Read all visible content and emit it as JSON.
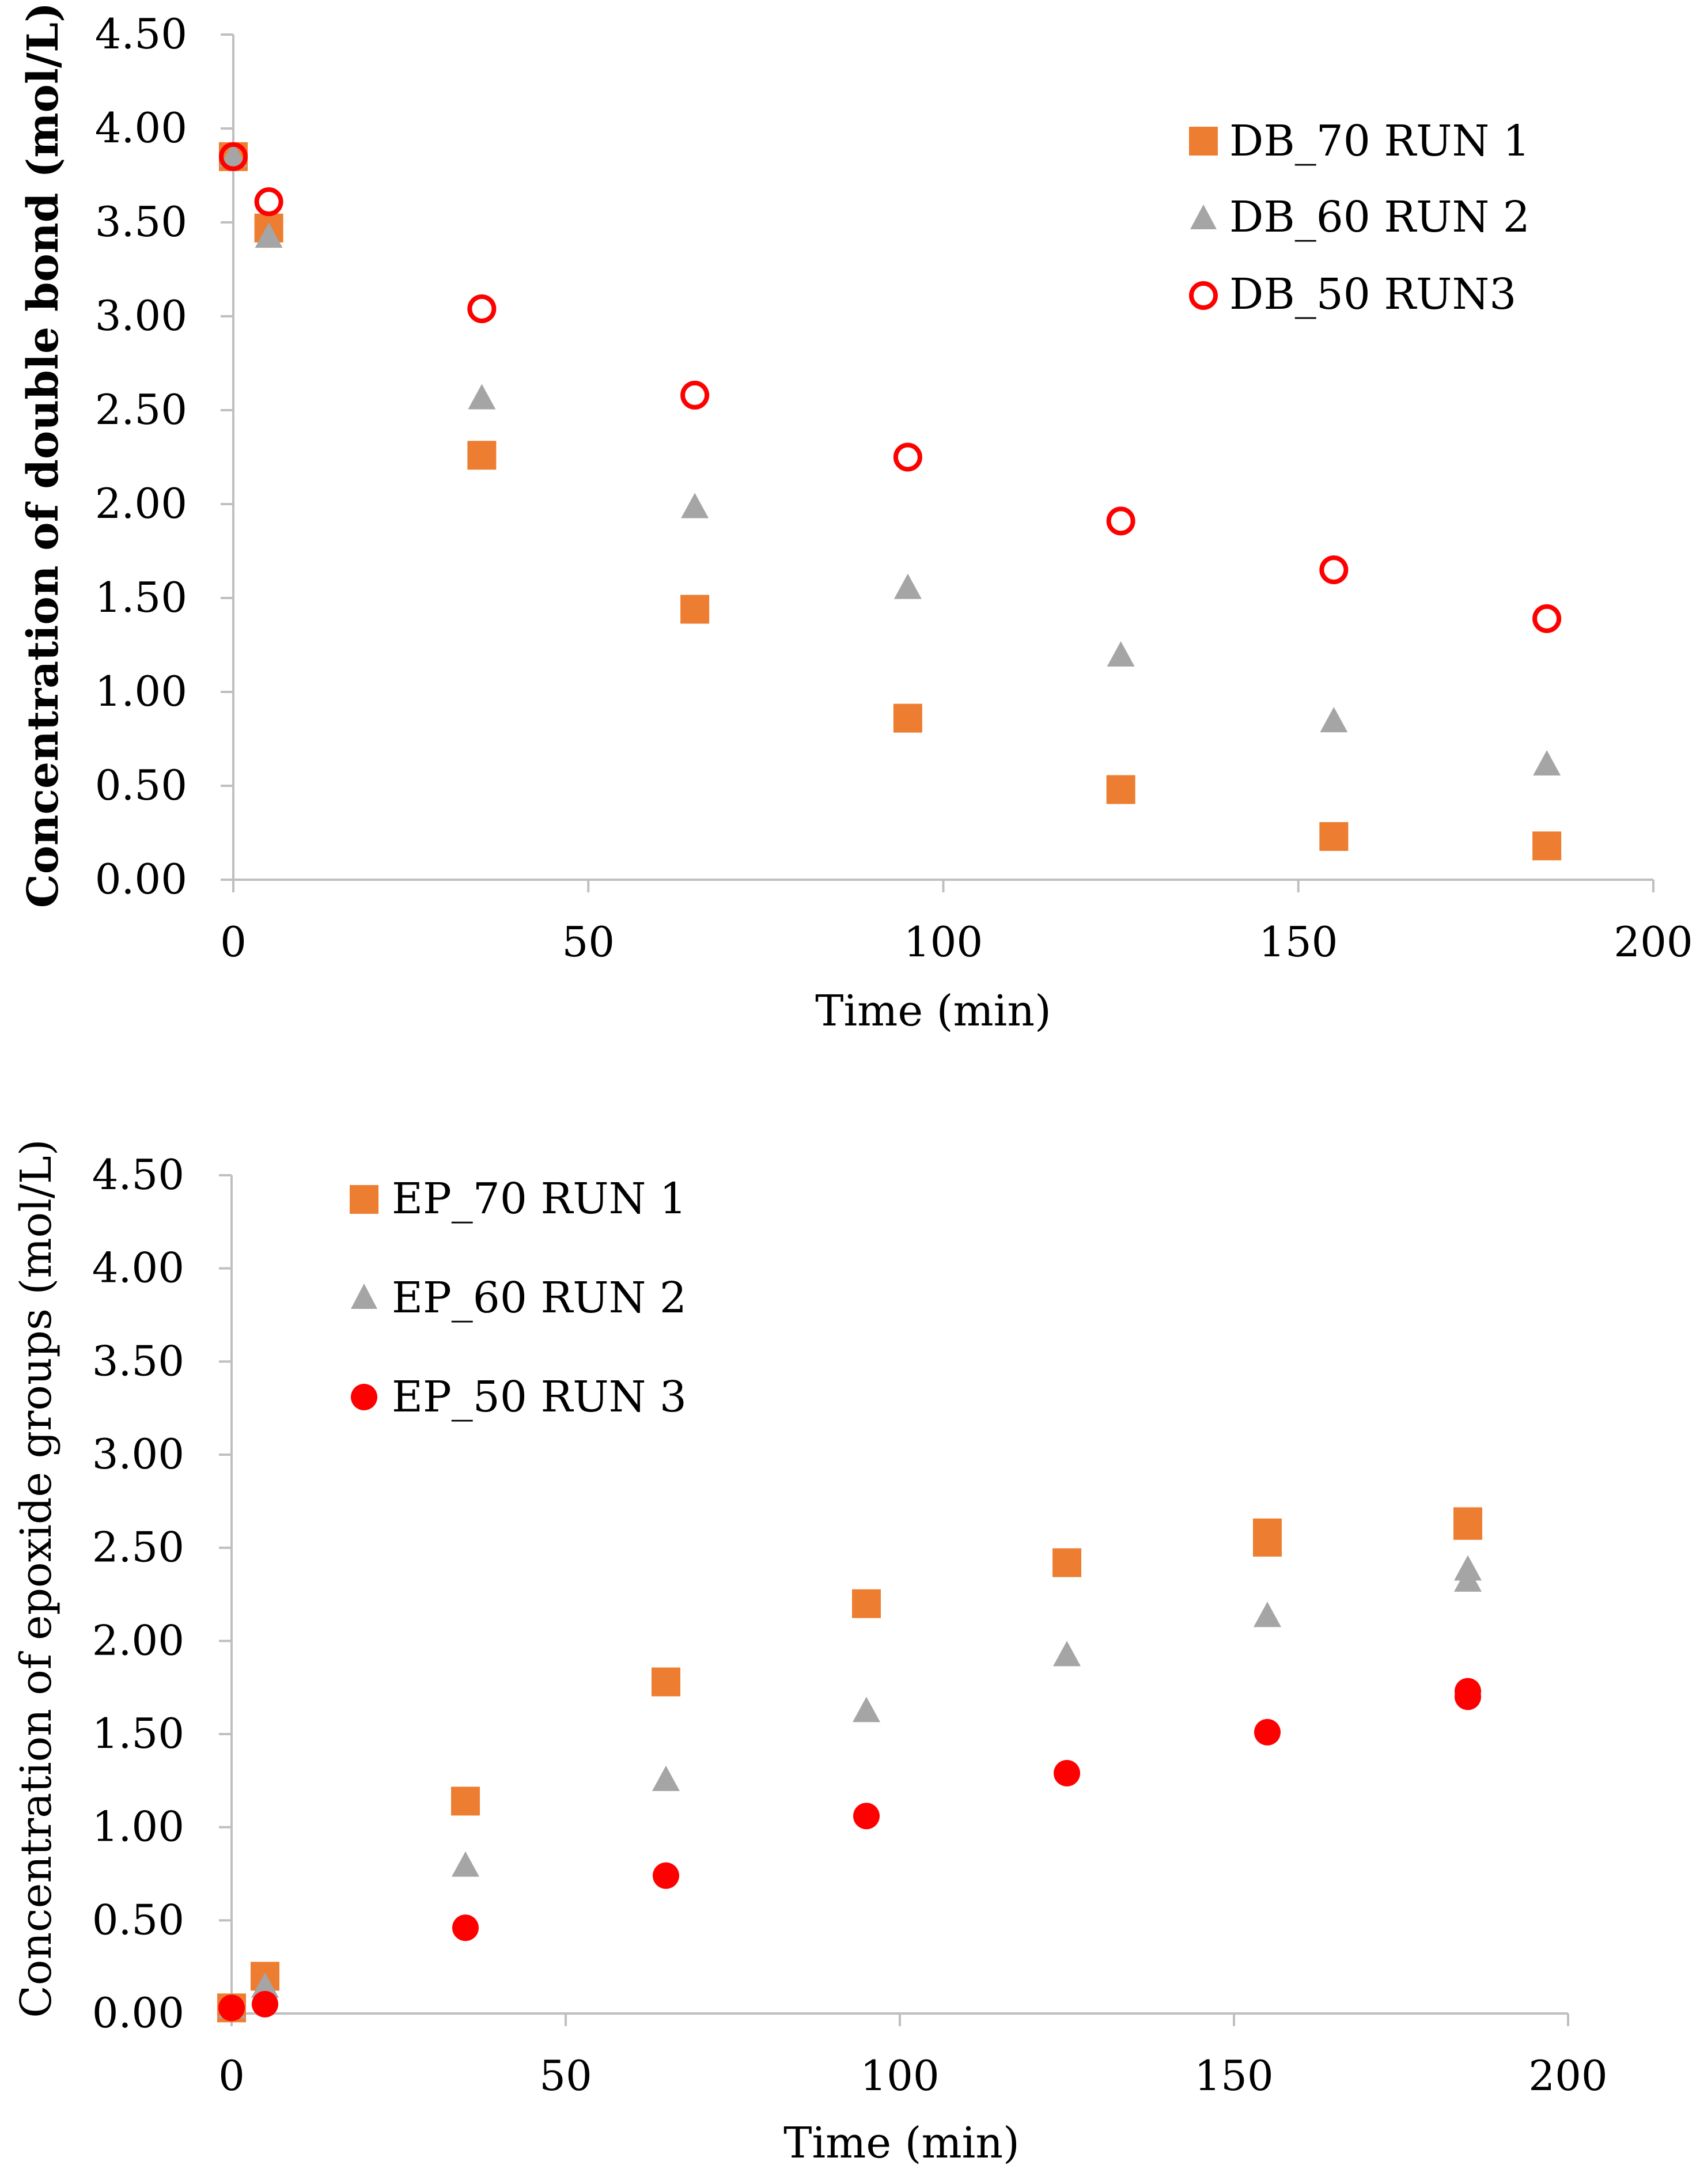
{
  "chart_data": [
    {
      "type": "scatter",
      "xlabel": "Time (min)",
      "ylabel": "Concentration of double bond (mol/L)",
      "xlim": [
        0,
        200
      ],
      "ylim": [
        0,
        4.5
      ],
      "xticks": [
        "0",
        "50",
        "100",
        "150",
        "200"
      ],
      "yticks": [
        "0.00",
        "0.50",
        "1.00",
        "1.50",
        "2.00",
        "2.50",
        "3.00",
        "3.50",
        "4.00",
        "4.50"
      ],
      "legend_position": "top-right",
      "series": [
        {
          "name": "DB_70 RUN 1",
          "marker": "square",
          "color": "#ED7D31",
          "x": [
            0,
            5,
            35,
            65,
            95,
            125,
            155,
            185
          ],
          "y": [
            3.85,
            3.47,
            2.26,
            1.44,
            0.86,
            0.48,
            0.23,
            0.18
          ]
        },
        {
          "name": "DB_60 RUN 2",
          "marker": "triangle",
          "color": "#A5A5A5",
          "x": [
            0,
            5,
            35,
            65,
            95,
            125,
            155,
            185
          ],
          "y": [
            3.85,
            3.42,
            2.56,
            1.98,
            1.55,
            1.19,
            0.84,
            0.61
          ]
        },
        {
          "name": "DB_50 RUN3",
          "marker": "circle-open",
          "color": "#FF0000",
          "x": [
            0,
            5,
            35,
            65,
            95,
            125,
            155,
            185
          ],
          "y": [
            3.85,
            3.61,
            3.04,
            2.58,
            2.25,
            1.91,
            1.65,
            1.39
          ]
        }
      ]
    },
    {
      "type": "scatter",
      "xlabel": "Time (min)",
      "ylabel": "Concentration of epoxide groups (mol/L)",
      "xlim": [
        0,
        200
      ],
      "ylim": [
        0,
        4.5
      ],
      "xticks": [
        "0",
        "50",
        "100",
        "150",
        "200"
      ],
      "yticks": [
        "0.00",
        "0.50",
        "1.00",
        "1.50",
        "2.00",
        "2.50",
        "3.00",
        "3.50",
        "4.00",
        "4.50"
      ],
      "legend_position": "top-left",
      "series": [
        {
          "name": "EP_70 RUN 1",
          "marker": "square",
          "color": "#ED7D31",
          "x": [
            0,
            5,
            35,
            65,
            95,
            125,
            155,
            155,
            185,
            185
          ],
          "y": [
            0.03,
            0.2,
            1.14,
            1.78,
            2.2,
            2.42,
            2.58,
            2.53,
            2.64,
            2.62
          ]
        },
        {
          "name": "EP_60 RUN 2",
          "marker": "triangle",
          "color": "#A5A5A5",
          "x": [
            0,
            5,
            35,
            65,
            95,
            125,
            155,
            185,
            185
          ],
          "y": [
            0.03,
            0.14,
            0.79,
            1.25,
            1.62,
            1.92,
            2.13,
            2.38,
            2.32
          ]
        },
        {
          "name": "EP_50 RUN 3",
          "marker": "circle-filled",
          "color": "#FF0000",
          "x": [
            0,
            5,
            35,
            65,
            95,
            125,
            155,
            185,
            185
          ],
          "y": [
            0.03,
            0.05,
            0.46,
            0.74,
            1.06,
            1.29,
            1.51,
            1.73,
            1.7
          ]
        }
      ]
    }
  ]
}
